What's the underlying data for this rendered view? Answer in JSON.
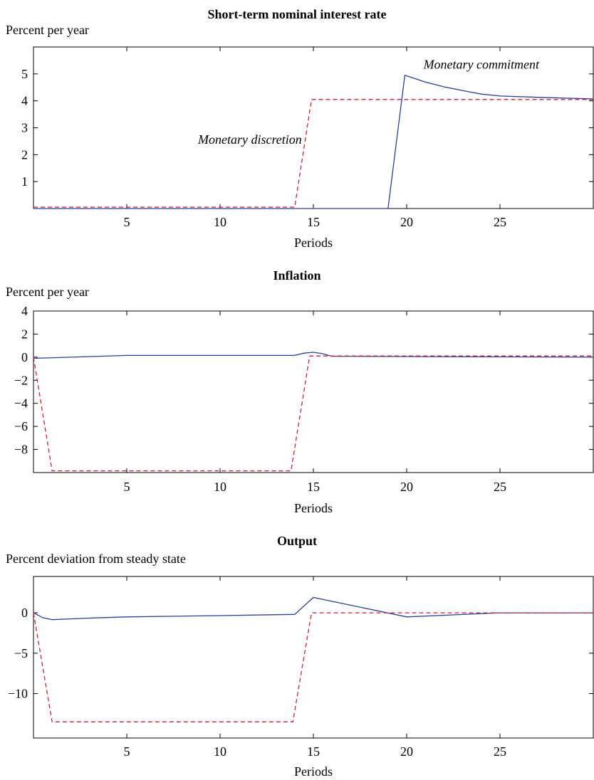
{
  "chart_data": [
    {
      "type": "line",
      "title": "Short-term nominal interest rate",
      "ylabel": "Percent per year",
      "xlabel": "Periods",
      "xlim": [
        0,
        30
      ],
      "ylim": [
        0,
        6
      ],
      "xticks": [
        5,
        10,
        15,
        20,
        25
      ],
      "yticks": [
        1,
        2,
        3,
        4,
        5
      ],
      "grid": false,
      "annotations": [
        {
          "text": "Monetary commitment",
          "x": 24,
          "y": 5.2
        },
        {
          "text": "Monetary discretion",
          "x": 11.6,
          "y": 2.4
        }
      ],
      "series": [
        {
          "name": "Monetary commitment",
          "color": "#2b3f95",
          "dash": "solid",
          "x": [
            0,
            19,
            19.9,
            21,
            22,
            23,
            24,
            25,
            27,
            30
          ],
          "y": [
            0,
            0,
            4.95,
            4.7,
            4.52,
            4.38,
            4.25,
            4.18,
            4.13,
            4.07
          ]
        },
        {
          "name": "Monetary discretion",
          "color": "#cc2233",
          "dash": "dashed",
          "x": [
            0,
            14,
            14.9,
            30
          ],
          "y": [
            0.05,
            0.05,
            4.05,
            4.05
          ]
        }
      ]
    },
    {
      "type": "line",
      "title": "Inflation",
      "ylabel": "Percent per year",
      "xlabel": "Periods",
      "xlim": [
        0,
        30
      ],
      "ylim": [
        -10,
        4
      ],
      "xticks": [
        5,
        10,
        15,
        20,
        25
      ],
      "yticks": [
        4,
        2,
        0,
        -2,
        -4,
        -6,
        -8
      ],
      "ytick_labels": [
        "4",
        "2",
        "0",
        "−2",
        "−4",
        "−6",
        "−8"
      ],
      "grid": false,
      "series": [
        {
          "name": "Monetary commitment",
          "color": "#2b3f95",
          "dash": "solid",
          "x": [
            0,
            5,
            14,
            14.5,
            15,
            15.5,
            16,
            20,
            30
          ],
          "y": [
            -0.1,
            0.15,
            0.15,
            0.35,
            0.42,
            0.3,
            0.08,
            0.05,
            0
          ]
        },
        {
          "name": "Monetary discretion",
          "color": "#cc2233",
          "dash": "dashed",
          "x": [
            0,
            1,
            13.8,
            14.8,
            30
          ],
          "y": [
            0,
            -9.85,
            -9.85,
            0.1,
            0.1
          ]
        }
      ]
    },
    {
      "type": "line",
      "title": "Output",
      "ylabel": "Percent deviation from steady state",
      "xlabel": "Periods",
      "xlim": [
        0,
        30
      ],
      "ylim": [
        -15.5,
        4.5
      ],
      "xticks": [
        5,
        10,
        15,
        20,
        25
      ],
      "yticks": [
        0,
        -5,
        -10
      ],
      "ytick_labels": [
        "0",
        "−5",
        "−10"
      ],
      "grid": false,
      "series": [
        {
          "name": "Monetary commitment",
          "color": "#2b3f95",
          "dash": "solid",
          "x": [
            0,
            0.5,
            1,
            2,
            3,
            5,
            10,
            14,
            15,
            20,
            25,
            30
          ],
          "y": [
            0,
            -0.6,
            -0.85,
            -0.75,
            -0.65,
            -0.5,
            -0.35,
            -0.2,
            1.9,
            -0.5,
            0,
            0
          ]
        },
        {
          "name": "Monetary discretion",
          "color": "#cc2233",
          "dash": "dashed",
          "x": [
            0,
            1,
            13.9,
            14.9,
            30
          ],
          "y": [
            0,
            -13.5,
            -13.5,
            0,
            0
          ]
        }
      ]
    }
  ]
}
